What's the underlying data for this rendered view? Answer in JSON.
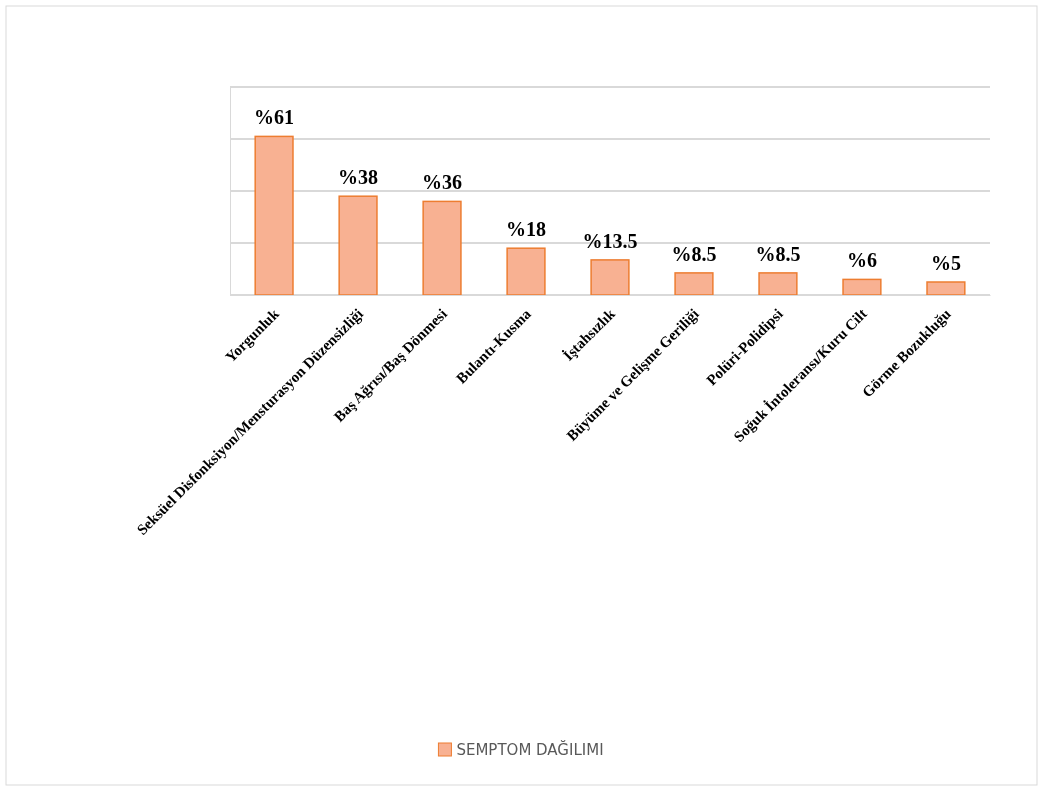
{
  "chart_data": {
    "type": "bar",
    "categories": [
      "Yorgunluk",
      "Seksüel Disfonksiyon/Mensturasyon Düzensizliği",
      "Baş Ağrısı/Baş Dönmesi",
      "Bulantı-Kusma",
      "İştahsızlık",
      "Büyüme ve Gelişme Geriliği",
      "Polüri-Polidipsi",
      "Soğuk İntoleransı/Kuru Cilt",
      "Görme Bozukluğu"
    ],
    "series": [
      {
        "name": "SEMPTOM DAĞILIMI",
        "color": "#f8b192",
        "values": [
          61,
          38,
          36,
          18,
          13.5,
          8.5,
          8.5,
          6,
          5
        ],
        "value_labels": [
          "%61",
          "%38",
          "%36",
          "%18",
          "%13.5",
          "%8.5",
          "%8.5",
          "%6",
          "%5"
        ]
      }
    ],
    "ylim": [
      0,
      80
    ],
    "yticks": [
      {
        "value": 0,
        "label": null
      },
      {
        "value": 20,
        "label": null
      },
      {
        "value": 40,
        "label": null
      },
      {
        "value": 60,
        "label": null
      },
      {
        "value": 80,
        "label": null
      }
    ],
    "tick_labels": "x",
    "grid": "y",
    "legend": "bottom"
  }
}
